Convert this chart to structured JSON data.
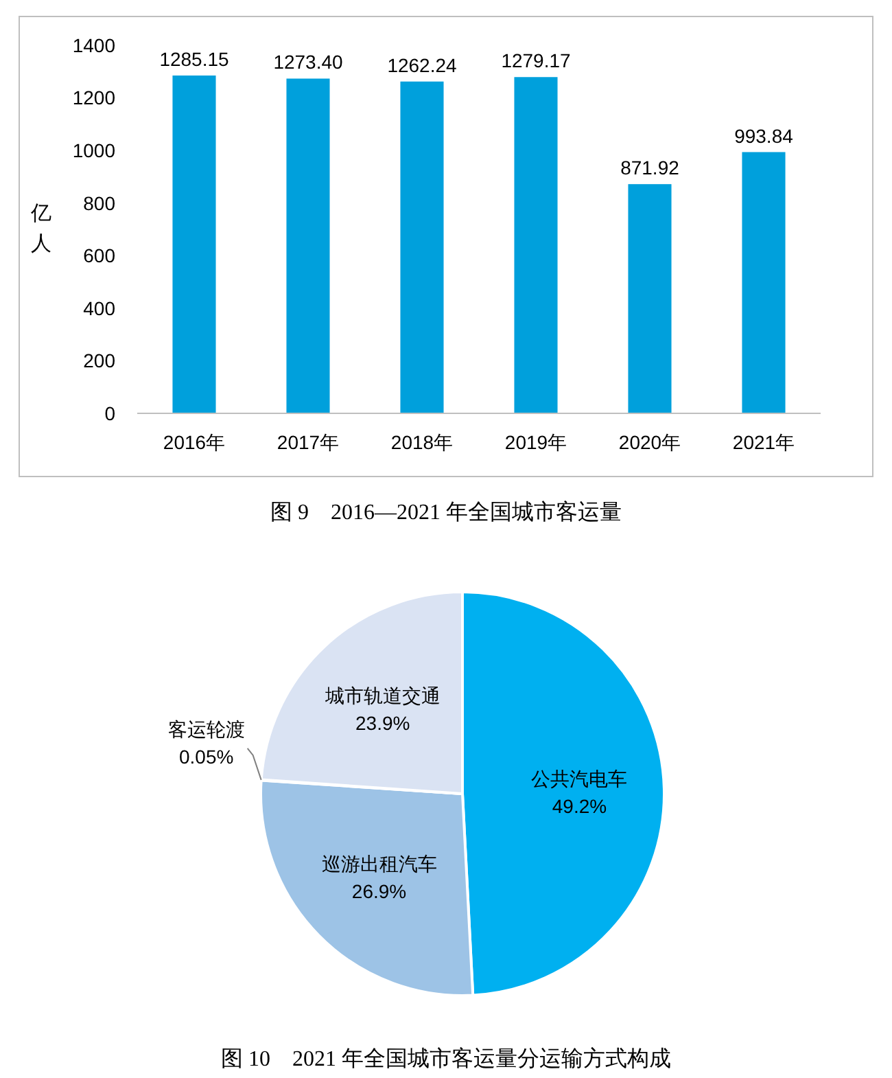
{
  "chart_data": [
    {
      "type": "bar",
      "title": "图 9　2016—2021 年全国城市客运量",
      "ylabel": "亿人",
      "categories": [
        "2016年",
        "2017年",
        "2018年",
        "2019年",
        "2020年",
        "2021年"
      ],
      "values": [
        1285.15,
        1273.4,
        1262.24,
        1279.17,
        871.92,
        993.84
      ],
      "value_labels": [
        "1285.15",
        "1273.40",
        "1262.24",
        "1279.17",
        "871.92",
        "993.84"
      ],
      "color": "#00a0dc",
      "ylim": [
        0,
        1400
      ],
      "yticks": [
        0,
        200,
        400,
        600,
        800,
        1000,
        1200,
        1400
      ],
      "grid": false
    },
    {
      "type": "pie",
      "title": "图 10　2021 年全国城市客运量分运输方式构成",
      "categories": [
        "公共汽电车",
        "巡游出租汽车",
        "客运轮渡",
        "城市轨道交通"
      ],
      "values": [
        49.2,
        26.9,
        0.05,
        23.9
      ],
      "value_labels": [
        "49.2%",
        "26.9%",
        "0.05%",
        "23.9%"
      ],
      "colors": [
        "#00b0f0",
        "#9dc3e6",
        "#a5a5a5",
        "#dae3f3"
      ]
    }
  ]
}
